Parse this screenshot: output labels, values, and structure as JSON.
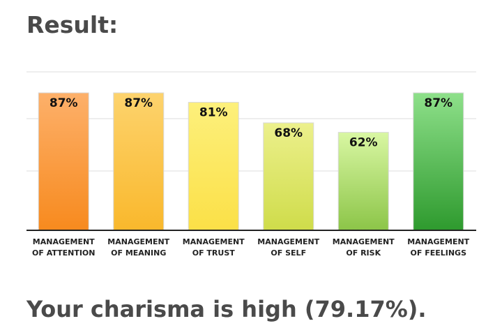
{
  "heading": "Result:",
  "summary": "Your charisma is high (79.17%).",
  "chart_data": {
    "type": "bar",
    "categories": [
      [
        "MANAGEMENT",
        "OF ATTENTION"
      ],
      [
        "MANAGEMENT",
        "OF MEANING"
      ],
      [
        "MANAGEMENT",
        "OF TRUST"
      ],
      [
        "MANAGEMENT",
        "OF SELF"
      ],
      [
        "MANAGEMENT",
        "OF RISK"
      ],
      [
        "MANAGEMENT",
        "OF FEELINGS"
      ]
    ],
    "values": [
      87,
      87,
      81,
      68,
      62,
      87
    ],
    "value_labels": [
      "87%",
      "87%",
      "81%",
      "68%",
      "62%",
      "87%"
    ],
    "ylim": [
      0,
      100
    ],
    "grid": true,
    "legend": "none",
    "colors": [
      [
        "#fdb06a",
        "#f78a1e"
      ],
      [
        "#fdd36d",
        "#f9b82c"
      ],
      [
        "#fdf07c",
        "#fbe047"
      ],
      [
        "#ecf08c",
        "#cfdc4a"
      ],
      [
        "#d9f7a3",
        "#8cc548"
      ],
      [
        "#8ee08a",
        "#2e9a2e"
      ]
    ],
    "bar_border": "#d8d8d8",
    "grid_color": "#dddddd",
    "axis_color": "#222222"
  }
}
